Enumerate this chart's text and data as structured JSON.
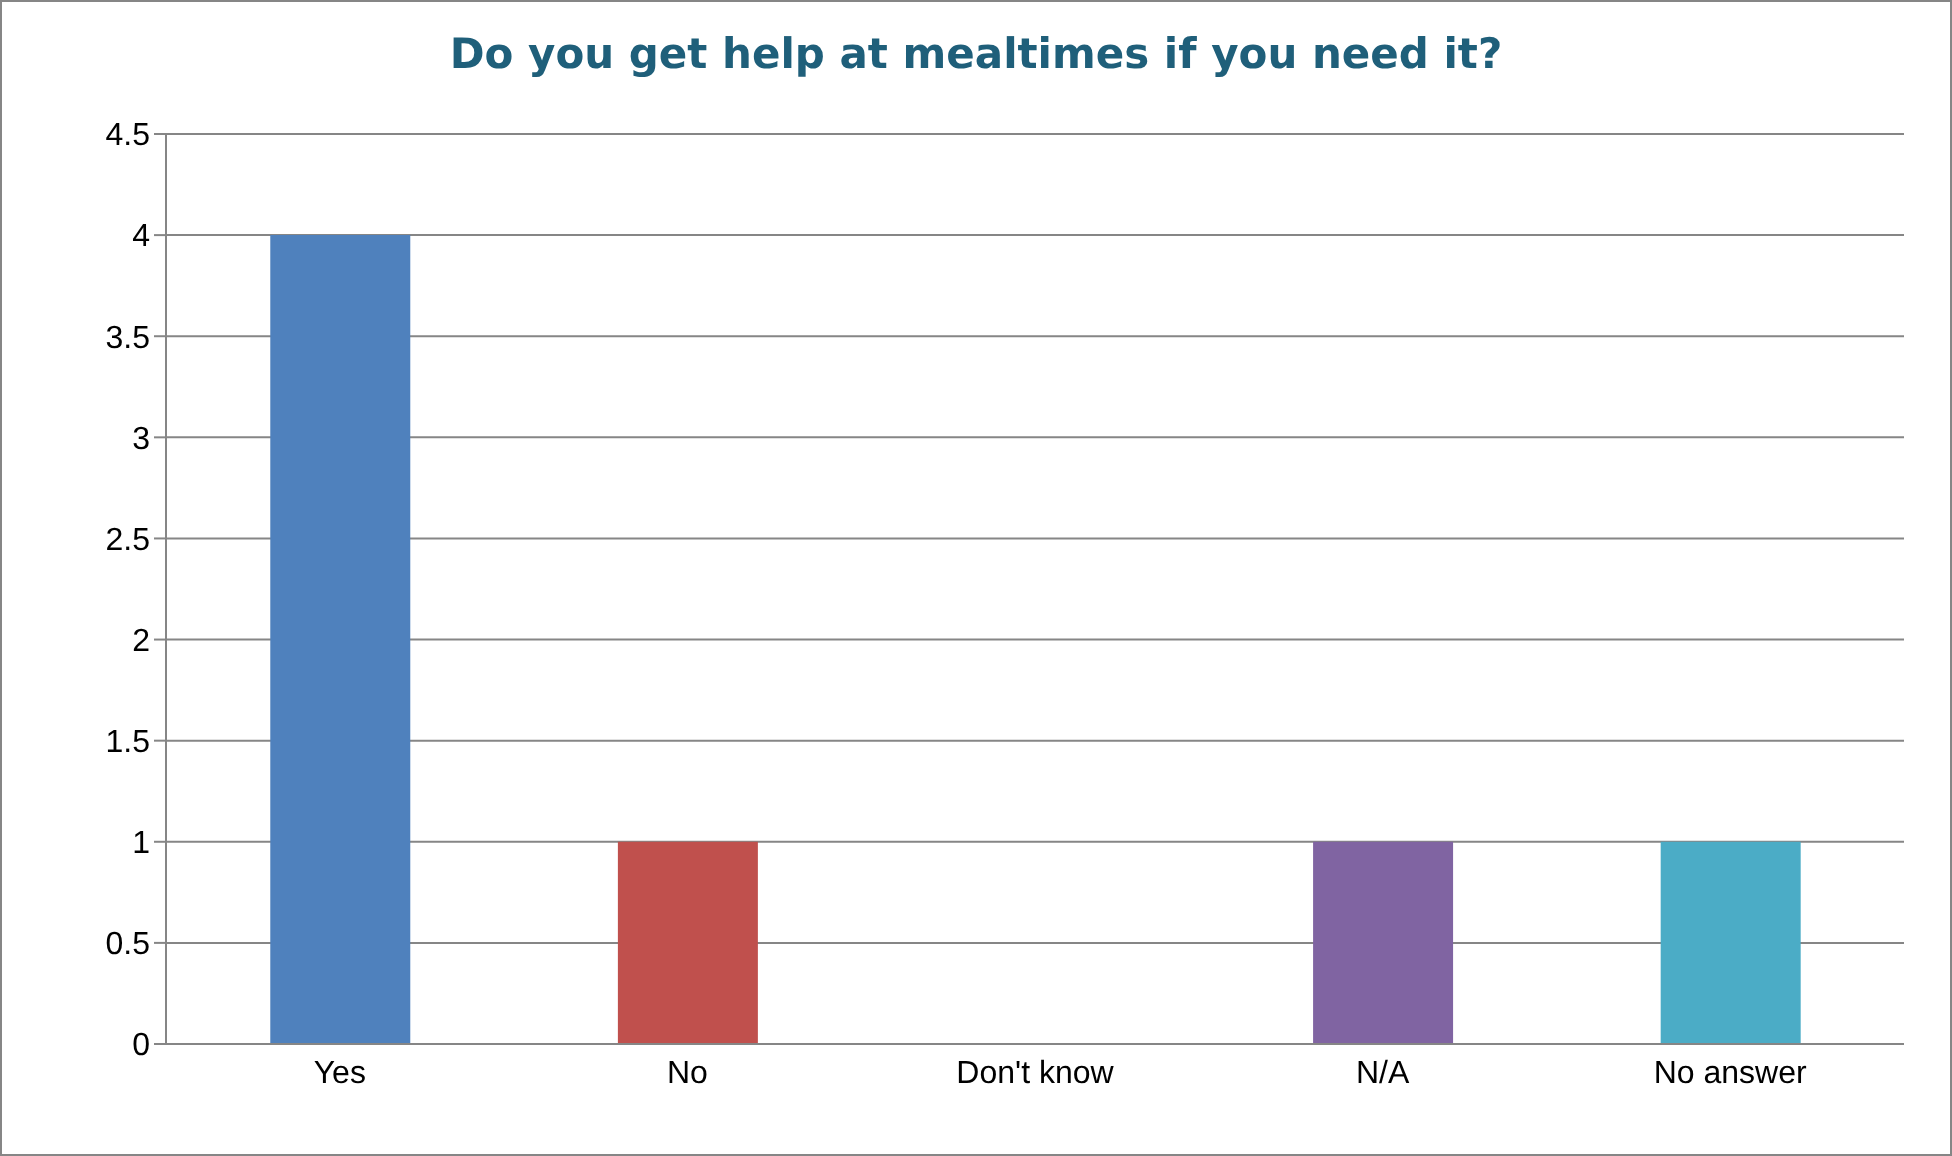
{
  "chart_data": {
    "type": "bar",
    "title": "Do you get help at mealtimes if you need it?",
    "categories": [
      "Yes",
      "No",
      "Don't know",
      "N/A",
      "No answer"
    ],
    "values": [
      4,
      1,
      0,
      1,
      1
    ],
    "colors": [
      "#4f81bd",
      "#c0504d",
      "#9bbb59",
      "#8064a2",
      "#4bacc6"
    ],
    "ylim": [
      0,
      4.5
    ],
    "yticks": [
      0,
      0.5,
      1,
      1.5,
      2,
      2.5,
      3,
      3.5,
      4,
      4.5
    ],
    "grid": "y",
    "legend": false
  }
}
